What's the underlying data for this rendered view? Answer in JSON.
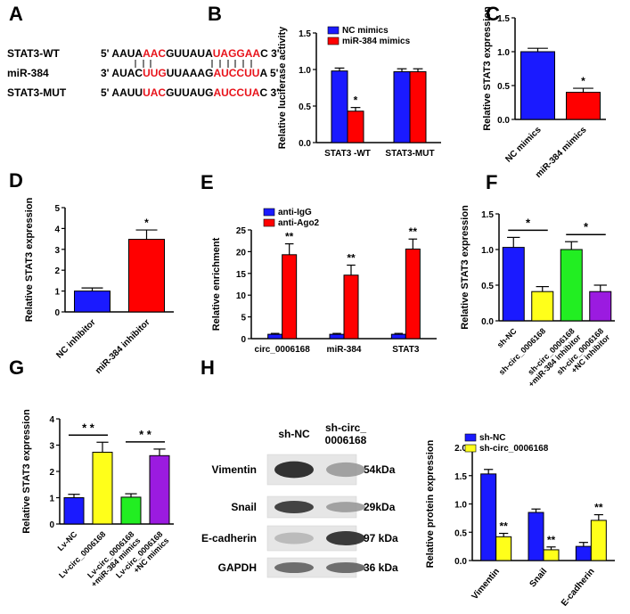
{
  "colors": {
    "blue": "#1a1aff",
    "red": "#ff0000",
    "yellow": "#ffff1a",
    "green": "#22ee22",
    "purple": "#9b1be0",
    "seq_highlight": "#e8141c"
  },
  "panel_labels": {
    "A": "A",
    "B": "B",
    "C": "C",
    "D": "D",
    "E": "E",
    "F": "F",
    "G": "G",
    "H": "H"
  },
  "panelA": {
    "rows": [
      {
        "name": "STAT3-WT",
        "prefix": "5'",
        "parts": [
          [
            "AAUA",
            false
          ],
          [
            "AAC",
            true
          ],
          [
            "GUUAUA",
            false
          ],
          [
            "UAGGAA",
            true
          ],
          [
            "C",
            false
          ]
        ],
        "suffix": "3'"
      },
      {
        "name": "miR-384",
        "prefix": "3'",
        "parts": [
          [
            "AUAC",
            false
          ],
          [
            "UUG",
            true
          ],
          [
            "UUAAAG",
            false
          ],
          [
            "AUCCUU",
            true
          ],
          [
            "A",
            false
          ]
        ],
        "suffix": "5'"
      },
      {
        "name": "STAT3-MUT",
        "prefix": "5'",
        "parts": [
          [
            "AAUU",
            false
          ],
          [
            "UAC",
            true
          ],
          [
            "GUUAUG",
            false
          ],
          [
            "AUCCUA",
            true
          ],
          [
            "C",
            false
          ]
        ],
        "suffix": "3'"
      }
    ]
  },
  "chart_data": [
    {
      "id": "B",
      "type": "bar",
      "ylabel": "Relative luciferase activity",
      "ylim": [
        0,
        1.5
      ],
      "yticks": [
        "0.0",
        "0.5",
        "1.0",
        "1.5"
      ],
      "categories": [
        "STAT3 -WT",
        "STAT3-MUT"
      ],
      "series": [
        {
          "name": "NC mimics",
          "color": "#1a1aff",
          "values": [
            0.98,
            0.97
          ],
          "errors": [
            0.04,
            0.04
          ]
        },
        {
          "name": "miR-384 mimics",
          "color": "#ff0000",
          "values": [
            0.43,
            0.97
          ],
          "errors": [
            0.05,
            0.04
          ]
        }
      ],
      "significance": [
        {
          "category": 0,
          "series": 1,
          "text": "*"
        }
      ],
      "legend": "top"
    },
    {
      "id": "C",
      "type": "bar",
      "ylabel": "Relative STAT3 expression",
      "ylim": [
        0,
        1.5
      ],
      "yticks": [
        "0.0",
        "0.5",
        "1.0",
        "1.5"
      ],
      "categories": [
        "NC mimics",
        "miR-384 mimics"
      ],
      "values": [
        1.0,
        0.4
      ],
      "errors": [
        0.05,
        0.06
      ],
      "colors": [
        "#1a1aff",
        "#ff0000"
      ],
      "significance": [
        {
          "index": 1,
          "text": "*"
        }
      ]
    },
    {
      "id": "D",
      "type": "bar",
      "ylabel": "Relative STAT3 expression",
      "ylim": [
        0,
        5
      ],
      "yticks": [
        "0",
        "1",
        "2",
        "3",
        "4",
        "5"
      ],
      "categories": [
        "NC inhibitor",
        "miR-384 inhibitor"
      ],
      "values": [
        1.0,
        3.48
      ],
      "errors": [
        0.15,
        0.45
      ],
      "colors": [
        "#1a1aff",
        "#ff0000"
      ],
      "significance": [
        {
          "index": 1,
          "text": "*"
        }
      ]
    },
    {
      "id": "E",
      "type": "bar",
      "ylabel": "Relative enrichment",
      "ylim": [
        0,
        25
      ],
      "yticks": [
        "0",
        "5",
        "10",
        "15",
        "20",
        "25"
      ],
      "categories": [
        "circ_0006168",
        "miR-384",
        "STAT3"
      ],
      "series": [
        {
          "name": "anti-IgG",
          "color": "#1a1aff",
          "values": [
            1.0,
            1.0,
            1.0
          ],
          "errors": [
            0.2,
            0.2,
            0.2
          ]
        },
        {
          "name": "anti-Ago2",
          "color": "#ff0000",
          "values": [
            19.3,
            14.6,
            20.6
          ],
          "errors": [
            2.5,
            2.3,
            2.3
          ]
        }
      ],
      "significance": [
        {
          "category": 0,
          "series": 1,
          "text": "**"
        },
        {
          "category": 1,
          "series": 1,
          "text": "**"
        },
        {
          "category": 2,
          "series": 1,
          "text": "**"
        }
      ],
      "legend": "top-left"
    },
    {
      "id": "F",
      "type": "bar",
      "ylabel": "Relative STAT3 expression",
      "ylim": [
        0,
        1.5
      ],
      "yticks": [
        "0.0",
        "0.5",
        "1.0",
        "1.5"
      ],
      "categories": [
        "sh-NC",
        "sh-circ_0006168",
        "sh-circ_0006168\n+miR-384 inhibitor",
        "sh-circ_0006168\n+NC inhibitor"
      ],
      "values": [
        1.03,
        0.41,
        1.0,
        0.41
      ],
      "errors": [
        0.14,
        0.07,
        0.11,
        0.09
      ],
      "colors": [
        "#1a1aff",
        "#ffff1a",
        "#22ee22",
        "#9b1be0"
      ],
      "brackets": [
        {
          "from": 0,
          "to": 1,
          "text": "*"
        },
        {
          "from": 2,
          "to": 3,
          "text": "*"
        }
      ]
    },
    {
      "id": "G",
      "type": "bar",
      "ylabel": "Relative STAT3 expression",
      "ylim": [
        0,
        4
      ],
      "yticks": [
        "0",
        "1",
        "2",
        "3",
        "4"
      ],
      "categories": [
        "Lv-NC",
        "Lv-circ_0006168",
        "Lv-circ_0006168\n+miR-384 mimics",
        "Lv-circ_0006168\n+NC mimics"
      ],
      "values": [
        1.0,
        2.73,
        1.02,
        2.6
      ],
      "errors": [
        0.13,
        0.38,
        0.13,
        0.25
      ],
      "colors": [
        "#1a1aff",
        "#ffff1a",
        "#22ee22",
        "#9b1be0"
      ],
      "brackets": [
        {
          "from": 0,
          "to": 1,
          "text": "* *"
        },
        {
          "from": 2,
          "to": 3,
          "text": "* *"
        }
      ]
    },
    {
      "id": "H",
      "type": "bar",
      "ylabel": "Relative protein expression",
      "ylim": [
        0,
        2.0
      ],
      "yticks": [
        "0.0",
        "0.5",
        "1.0",
        "1.5",
        "2.0"
      ],
      "categories": [
        "Vimentin",
        "Snail",
        "E-cadherin"
      ],
      "series": [
        {
          "name": "sh-NC",
          "color": "#1a1aff",
          "values": [
            1.53,
            0.85,
            0.25
          ],
          "errors": [
            0.08,
            0.06,
            0.07
          ]
        },
        {
          "name": "sh-circ_0006168",
          "color": "#ffff1a",
          "values": [
            0.42,
            0.19,
            0.71
          ],
          "errors": [
            0.06,
            0.05,
            0.1
          ]
        }
      ],
      "significance": [
        {
          "category": 0,
          "series": 1,
          "text": "**"
        },
        {
          "category": 1,
          "series": 1,
          "text": "**"
        },
        {
          "category": 2,
          "series": 1,
          "text": "**"
        }
      ],
      "legend": "top"
    }
  ],
  "blot": {
    "columns": [
      "sh-NC",
      "sh-circ_\n0006168"
    ],
    "rows": [
      {
        "protein": "Vimentin",
        "size": "54kDa",
        "intensity": [
          0.95,
          0.3
        ]
      },
      {
        "protein": "Snail",
        "size": "29kDa",
        "intensity": [
          0.85,
          0.3
        ]
      },
      {
        "protein": "E-cadherin",
        "size": "97 kDa",
        "intensity": [
          0.15,
          0.9
        ]
      },
      {
        "protein": "GAPDH",
        "size": "36 kDa",
        "intensity": [
          0.6,
          0.6
        ]
      }
    ]
  }
}
